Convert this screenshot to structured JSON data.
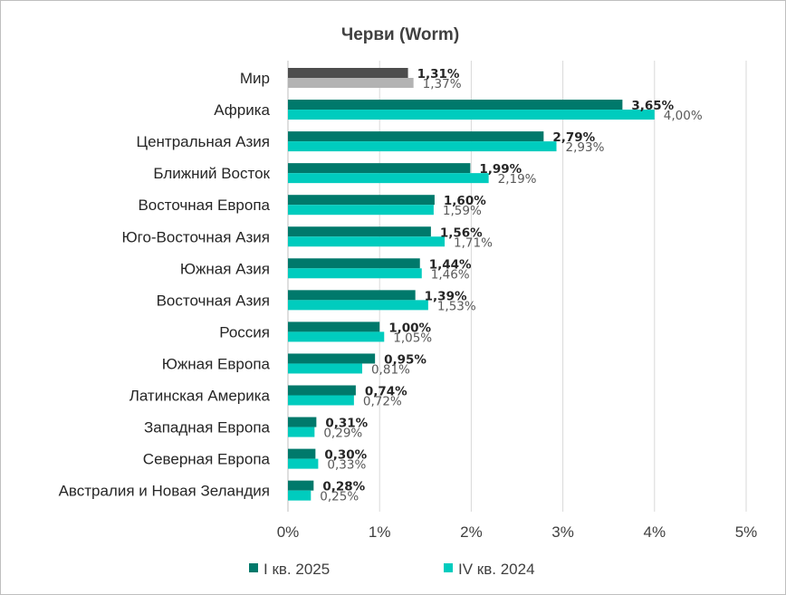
{
  "chart_data": {
    "type": "bar",
    "orientation": "horizontal",
    "title": "Черви (Worm)",
    "categories": [
      "Мир",
      "Африка",
      "Центральная Азия",
      "Ближний Восток",
      "Восточная Европа",
      "Юго-Восточная Азия",
      "Южная Азия",
      "Восточная Азия",
      "Россия",
      "Южная Европа",
      "Латинская Америка",
      "Западная Европа",
      "Северная Европа",
      "Австралия и Новая Зеландия"
    ],
    "series": [
      {
        "name": "I кв. 2025",
        "color": "#00796b",
        "world_color": "#4d4d4d",
        "values": [
          1.31,
          3.65,
          2.79,
          1.99,
          1.6,
          1.56,
          1.44,
          1.39,
          1.0,
          0.95,
          0.74,
          0.31,
          0.3,
          0.28
        ],
        "labels": [
          "1,31%",
          "3,65%",
          "2,79%",
          "1,99%",
          "1,60%",
          "1,56%",
          "1,44%",
          "1,39%",
          "1,00%",
          "0,95%",
          "0,74%",
          "0,31%",
          "0,30%",
          "0,28%"
        ]
      },
      {
        "name": "IV кв. 2024",
        "color": "#00ccbe",
        "world_color": "#b3b3b3",
        "values": [
          1.37,
          4.0,
          2.93,
          2.19,
          1.59,
          1.71,
          1.46,
          1.53,
          1.05,
          0.81,
          0.72,
          0.29,
          0.33,
          0.25
        ],
        "labels": [
          "1,37%",
          "4,00%",
          "2,93%",
          "2,19%",
          "1,59%",
          "1,71%",
          "1,46%",
          "1,53%",
          "1,05%",
          "0,81%",
          "0,72%",
          "0,29%",
          "0,33%",
          "0,25%"
        ]
      }
    ],
    "xlim": [
      0,
      5
    ],
    "xticks": [
      "0%",
      "1%",
      "2%",
      "3%",
      "4%",
      "5%"
    ],
    "grid": "vertical",
    "legend": "bottom"
  }
}
